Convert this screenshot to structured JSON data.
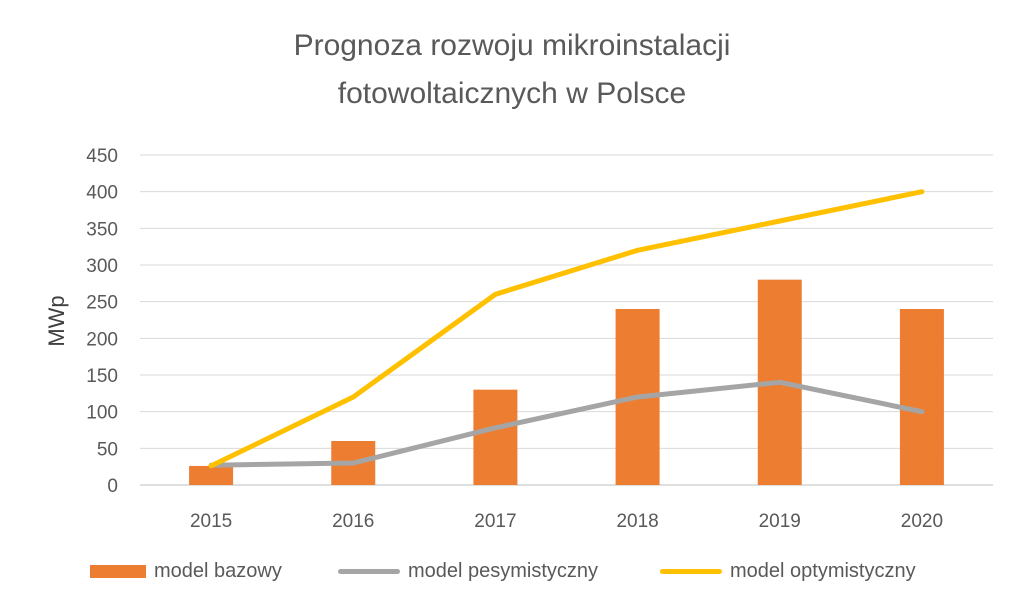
{
  "chart_data": {
    "type": "bar+line",
    "title_line1": "Prognoza rozwoju mikroinstalacji",
    "title_line2": "fotowoltaicznych w Polsce",
    "ylabel": "MWp",
    "xlabel": "",
    "ylim": [
      0,
      450
    ],
    "y_ticks": [
      "0",
      "50",
      "100",
      "150",
      "200",
      "250",
      "300",
      "350",
      "400",
      "450"
    ],
    "grid": "horizontal",
    "legend_position": "bottom",
    "categories": [
      "2015",
      "2016",
      "2017",
      "2018",
      "2019",
      "2020"
    ],
    "series": [
      {
        "name": "model bazowy",
        "kind": "bar",
        "color": "#ED7D31",
        "values": [
          26,
          60,
          130,
          240,
          280,
          240
        ]
      },
      {
        "name": "model pesymistyczny",
        "kind": "line",
        "color": "#A5A5A5",
        "values": [
          27,
          30,
          78,
          120,
          140,
          100
        ]
      },
      {
        "name": "model optymistyczny",
        "kind": "line",
        "color": "#FFC000",
        "values": [
          26,
          120,
          260,
          320,
          360,
          400
        ]
      }
    ]
  }
}
